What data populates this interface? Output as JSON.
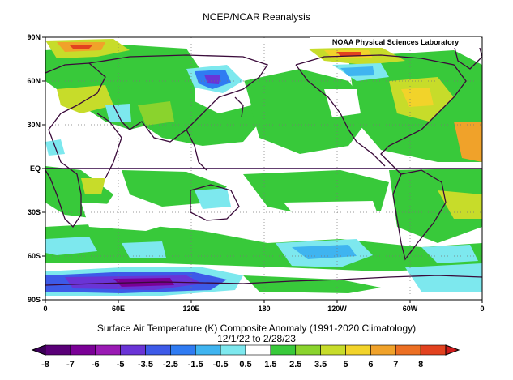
{
  "title": "NCEP/NCAR Reanalysis",
  "credit": "NOAA Physical Sciences Laboratory",
  "lat_labels": [
    "90N",
    "60N",
    "30N",
    "EQ",
    "30S",
    "60S",
    "90S"
  ],
  "lon_labels": [
    "0",
    "60E",
    "120E",
    "180",
    "120W",
    "60W",
    "0"
  ],
  "caption_line1": "Surface Air Temperature (K) Composite Anomaly (1991-2020 Climatology)",
  "caption_line2": "12/1/22  to 2/28/23",
  "colorbar": {
    "labels": [
      "-8",
      "-7",
      "-6",
      "-5",
      "-3.5",
      "-2.5",
      "-1.5",
      "-0.5",
      "0.5",
      "1.5",
      "2.5",
      "3.5",
      "5",
      "6",
      "7",
      "8"
    ],
    "colors": [
      "#3b0057",
      "#5a0078",
      "#7a0096",
      "#9a1ab4",
      "#6a34d6",
      "#3d5ae8",
      "#2f7bf2",
      "#3fb4f0",
      "#7de8ee",
      "#ffffff",
      "#38c93a",
      "#8ad32d",
      "#c7dc2a",
      "#f2d32a",
      "#f0a22a",
      "#ec6f23",
      "#e2421f",
      "#d01b1b"
    ]
  }
}
